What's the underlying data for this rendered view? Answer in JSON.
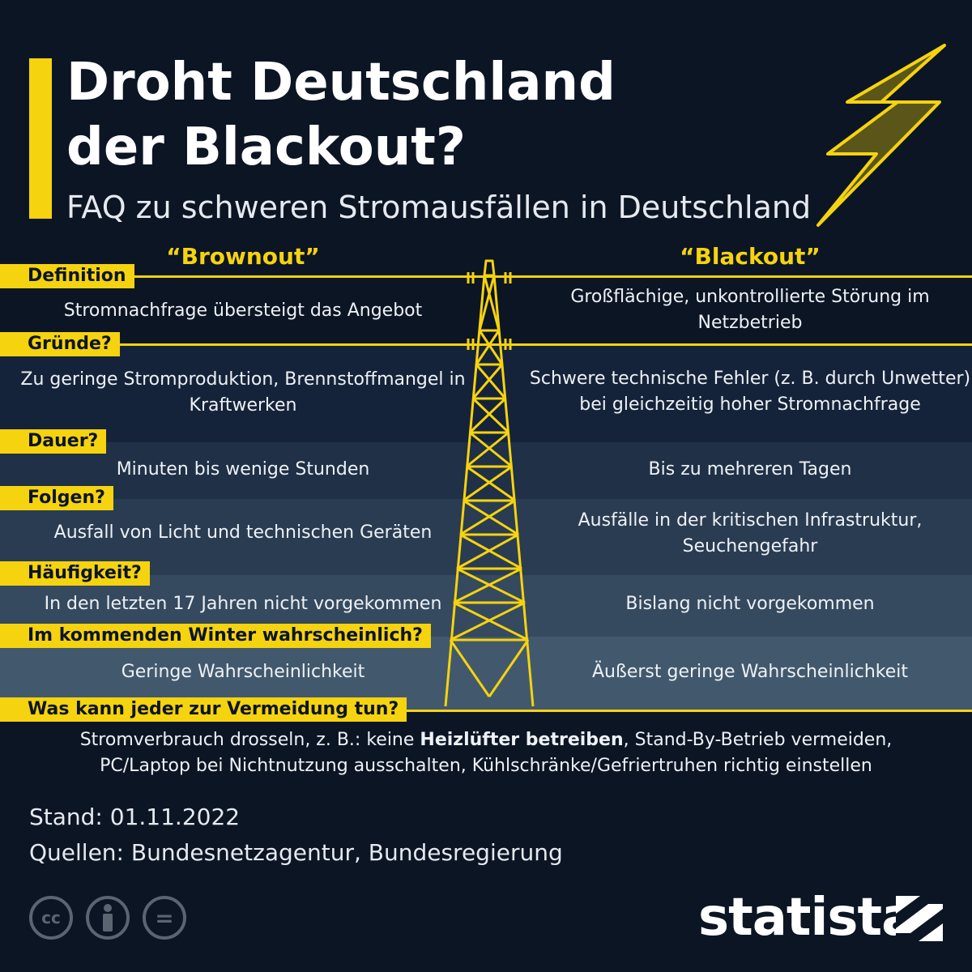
{
  "title_line1": "Droht Deutschland",
  "title_line2": "der Blackout?",
  "subtitle": "FAQ zu schweren Stromausfällen in Deutschland",
  "columns": {
    "left": "“Brownout”",
    "right": "“Blackout”"
  },
  "rows": [
    {
      "label": "Definition",
      "brownout": "Stromnachfrage übersteigt das Angebot",
      "blackout": "Großflächige, unkontrollierte Störung im Netzbetrieb"
    },
    {
      "label": "Gründe?",
      "brownout": "Zu geringe Stromproduktion, Brennstoffmangel in Kraftwerken",
      "blackout": "Schwere technische Fehler (z. B. durch Unwetter) bei gleichzeitig hoher Stromnachfrage"
    },
    {
      "label": "Dauer?",
      "brownout": "Minuten bis wenige Stunden",
      "blackout": "Bis zu mehreren Tagen"
    },
    {
      "label": "Folgen?",
      "brownout": "Ausfall von Licht und technischen Geräten",
      "blackout": "Ausfälle in der kritischen Infrastruktur, Seuchengefahr"
    },
    {
      "label": "Häufigkeit?",
      "brownout": "In den letzten 17 Jahren nicht vorgekommen",
      "blackout": "Bislang nicht vorgekommen"
    },
    {
      "label": "Im kommenden Winter wahrscheinlich?",
      "brownout": "Geringe Wahrscheinlichkeit",
      "blackout": "Äußerst geringe Wahrscheinlichkeit"
    }
  ],
  "tips": {
    "label": "Was kann jeder zur Vermeidung tun?",
    "before": "Stromverbrauch drosseln, z. B.: keine ",
    "bold": "Heizlüfter betreiben",
    "after": ", Stand-By-Betrieb vermeiden, PC/Laptop bei Nichtnutzung ausschalten, Kühlschränke/Gefriertruhen richtig einstellen"
  },
  "stand": "Stand: 01.11.2022",
  "sources": "Quellen: Bundesnetzagentur, Bundesregierung",
  "brand": "statista",
  "license_icons": [
    "cc-icon",
    "attribution-icon",
    "no-derivatives-icon"
  ],
  "license_glyphs": {
    "cc": "cc",
    "nd": "="
  },
  "colors": {
    "background": "#0c1524",
    "accent": "#f5d30f"
  }
}
